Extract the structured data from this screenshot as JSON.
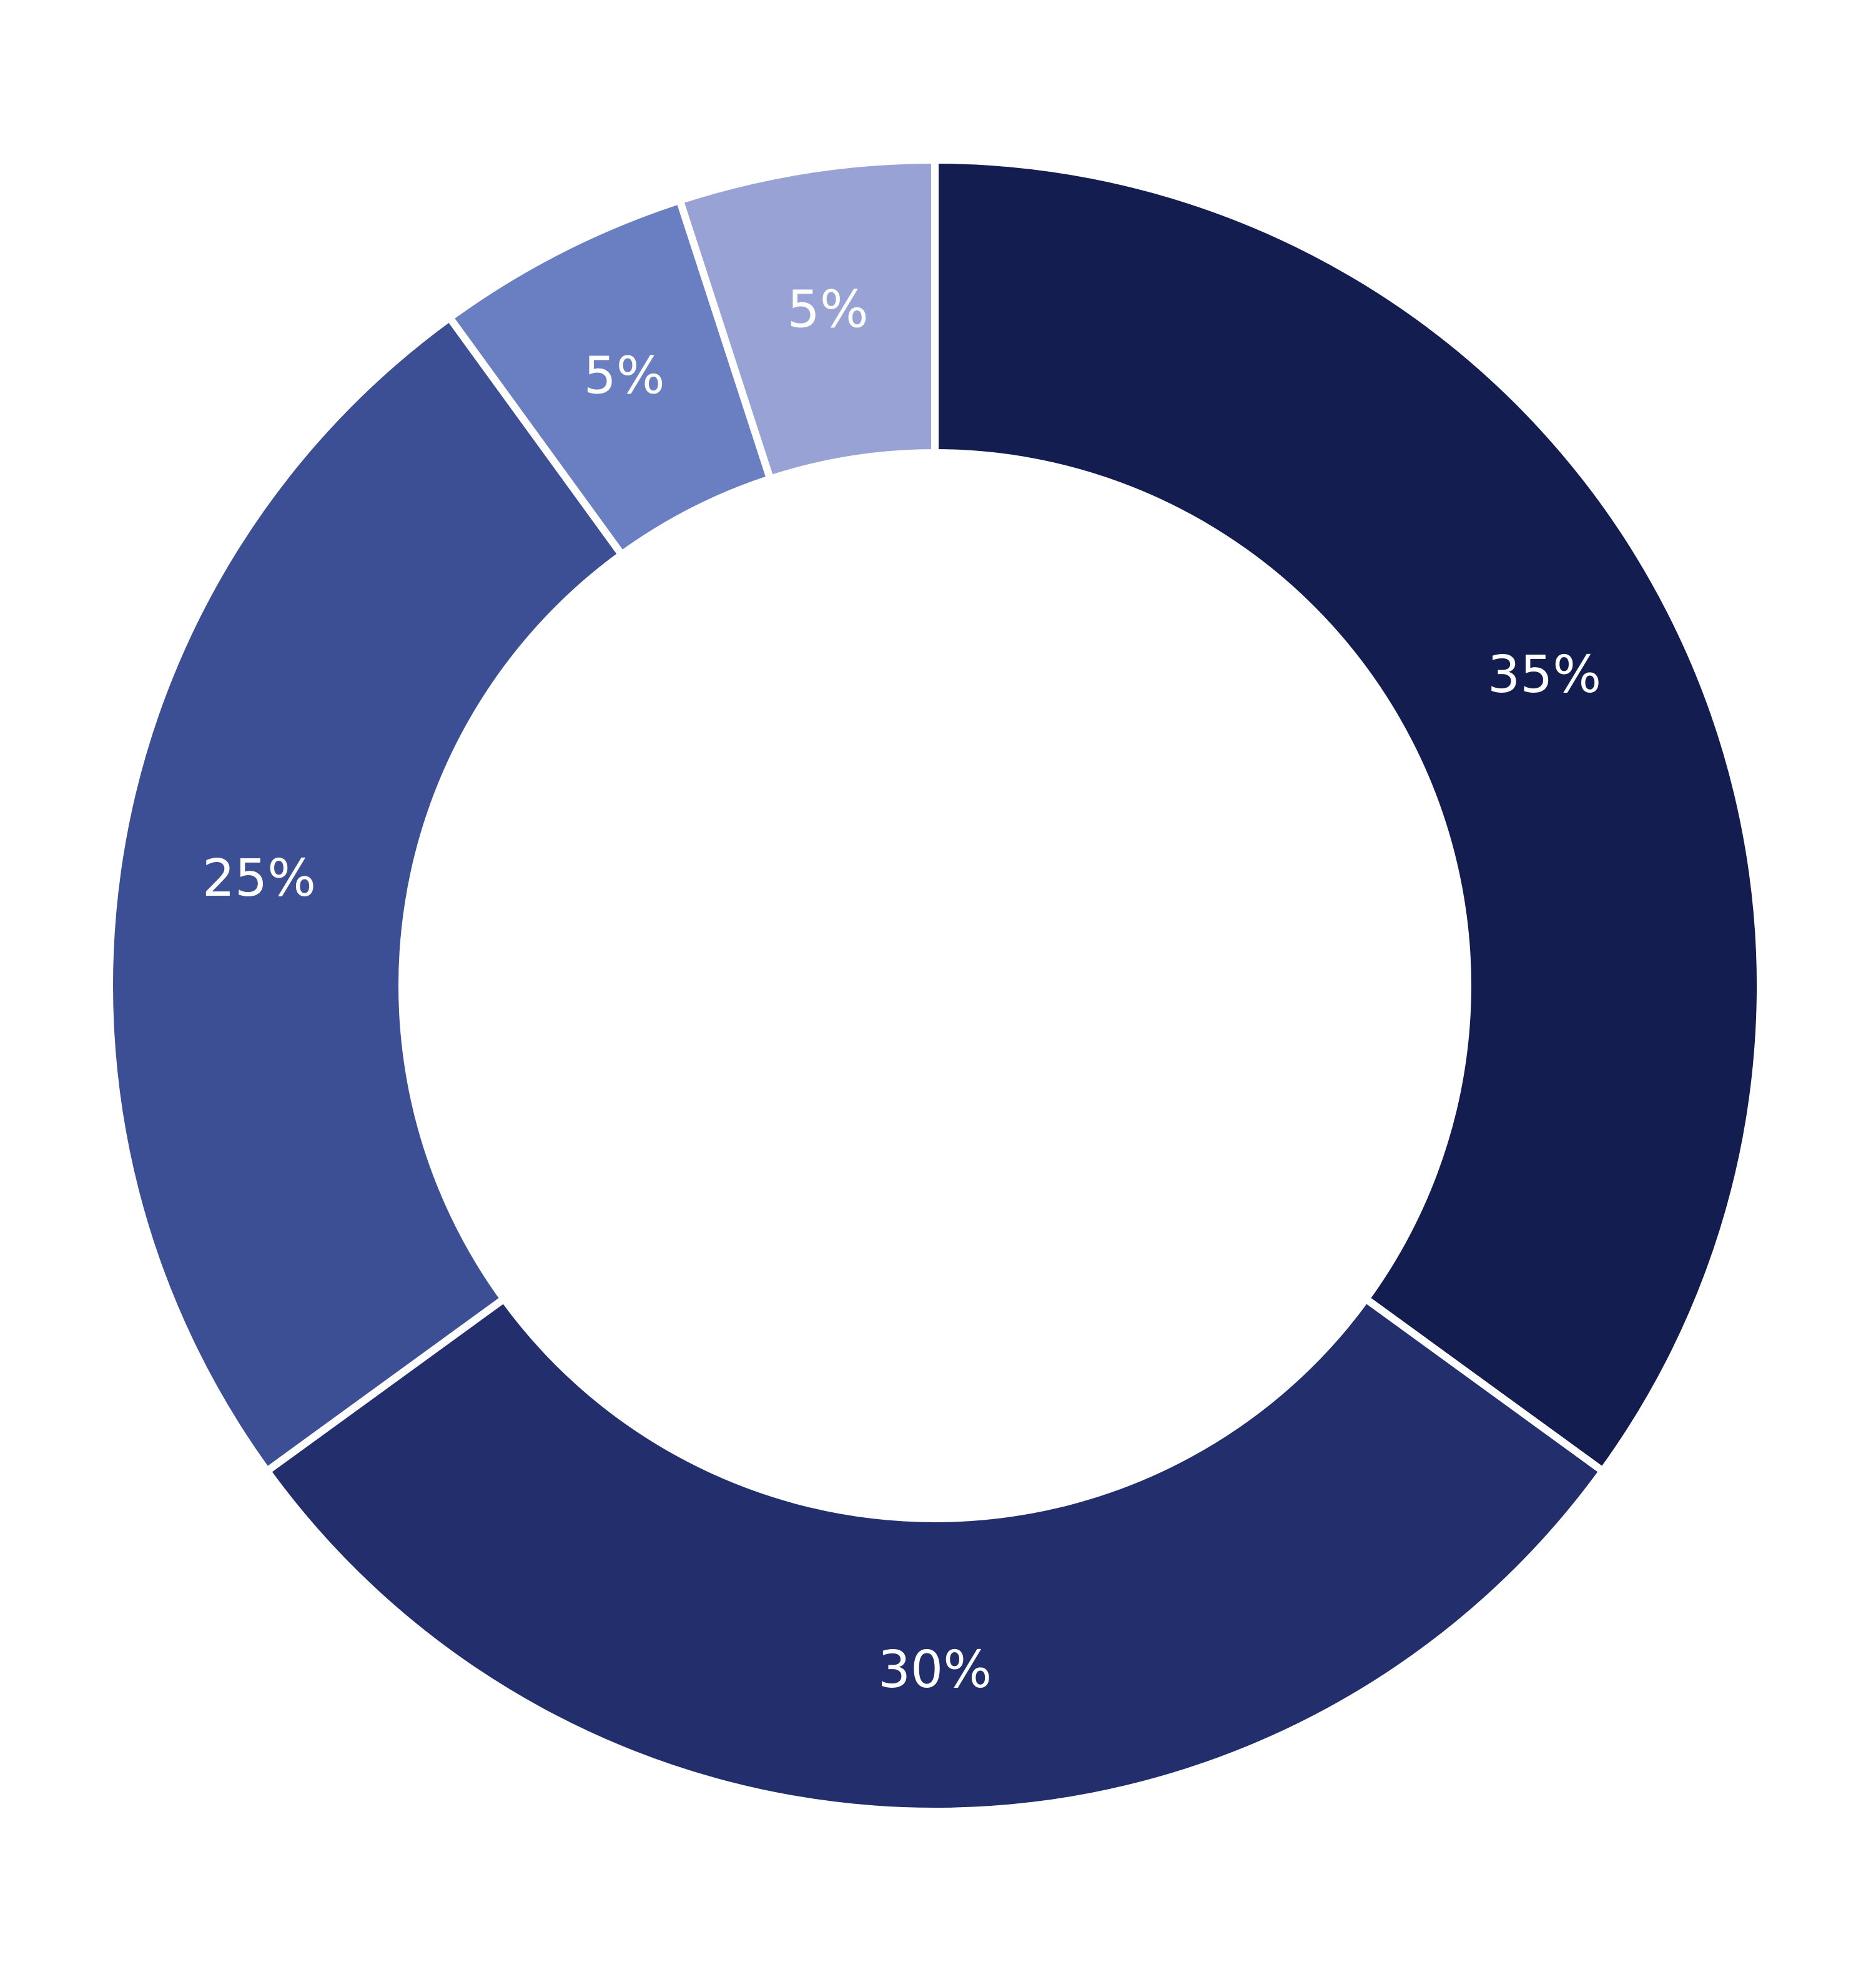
{
  "chart_data": {
    "type": "pie",
    "variant": "donut",
    "title": "",
    "slices": [
      {
        "label": "35%",
        "value": 35,
        "color": "#131d50"
      },
      {
        "label": "30%",
        "value": 30,
        "color": "#222f6c"
      },
      {
        "label": "25%",
        "value": 25,
        "color": "#3d4f94"
      },
      {
        "label": "5%",
        "value": 5,
        "color": "#6a7fc2"
      },
      {
        "label": "5%",
        "value": 5,
        "color": "#98a2d4"
      }
    ],
    "legend": "none",
    "data_labels": "inside slices"
  }
}
